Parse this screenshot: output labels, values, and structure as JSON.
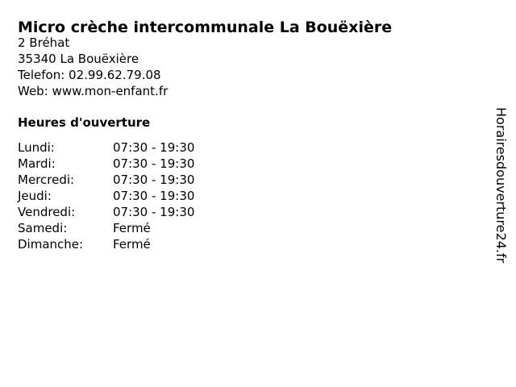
{
  "business": {
    "title": "Micro crèche intercommunale La Bouëxière",
    "address_line1": "2 Bréhat",
    "address_line2": "35340 La Bouëxière",
    "phone_label": "Telefon:",
    "phone_value": "02.99.62.79.08",
    "web_label": "Web:",
    "web_value": "www.mon-enfant.fr"
  },
  "hours": {
    "heading": "Heures d'ouverture",
    "rows": [
      {
        "day": "Lundi:",
        "value": "07:30 - 19:30"
      },
      {
        "day": "Mardi:",
        "value": "07:30 - 19:30"
      },
      {
        "day": "Mercredi:",
        "value": "07:30 - 19:30"
      },
      {
        "day": "Jeudi:",
        "value": "07:30 - 19:30"
      },
      {
        "day": "Vendredi:",
        "value": "07:30 - 19:30"
      },
      {
        "day": "Samedi:",
        "value": "Fermé"
      },
      {
        "day": "Dimanche:",
        "value": "Fermé"
      }
    ]
  },
  "watermark": {
    "text": "Horairesdouverture24.fr"
  },
  "colors": {
    "text": "#000000",
    "background": "#ffffff"
  }
}
